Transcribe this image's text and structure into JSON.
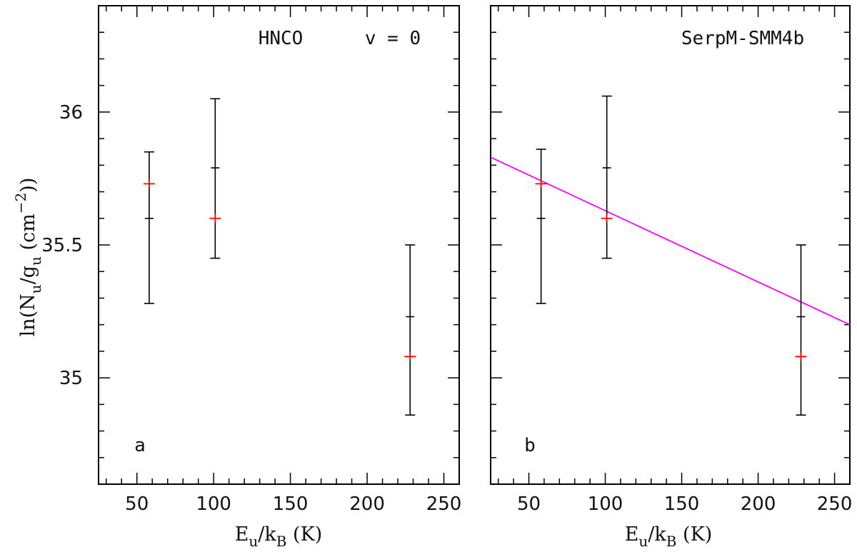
{
  "chart_data": [
    {
      "type": "scatter",
      "panel_label": "a",
      "annotations": [
        "HNCO",
        "v = 0"
      ],
      "xlim": [
        25,
        260
      ],
      "ylim": [
        34.6,
        36.4
      ],
      "x_major_ticks": [
        50,
        100,
        150,
        200,
        250
      ],
      "y_major_ticks": [
        35,
        35.5,
        36
      ],
      "x_tick_labels": [
        "50",
        "100",
        "150",
        "200",
        "250"
      ],
      "y_tick_labels": [
        "35",
        "35.5",
        "36"
      ],
      "series": [
        {
          "name": "observed",
          "color": "#ff0000",
          "points": [
            {
              "x": 58,
              "y": 35.73
            },
            {
              "x": 101,
              "y": 35.6
            },
            {
              "x": 228,
              "y": 35.08
            }
          ]
        },
        {
          "name": "error_bars",
          "color": "#000000",
          "bars": [
            {
              "x": 58,
              "low": 35.28,
              "high": 35.85,
              "mid": 35.6
            },
            {
              "x": 101,
              "low": 35.45,
              "high": 36.05,
              "mid": 35.79
            },
            {
              "x": 228,
              "low": 34.86,
              "high": 35.5,
              "mid": 35.23
            }
          ]
        }
      ]
    },
    {
      "type": "scatter",
      "panel_label": "b",
      "annotations": [
        "SerpM-SMM4b"
      ],
      "xlim": [
        25,
        260
      ],
      "ylim": [
        34.6,
        36.4
      ],
      "x_major_ticks": [
        50,
        100,
        150,
        200,
        250
      ],
      "y_major_ticks": [
        35,
        35.5,
        36
      ],
      "x_tick_labels": [
        "50",
        "100",
        "150",
        "200",
        "250"
      ],
      "series": [
        {
          "name": "observed",
          "color": "#ff0000",
          "points": [
            {
              "x": 58,
              "y": 35.73
            },
            {
              "x": 101,
              "y": 35.6
            },
            {
              "x": 228,
              "y": 35.08
            }
          ]
        },
        {
          "name": "error_bars",
          "color": "#000000",
          "bars": [
            {
              "x": 58,
              "low": 35.28,
              "high": 35.86,
              "mid": 35.6
            },
            {
              "x": 101,
              "low": 35.45,
              "high": 36.06,
              "mid": 35.79
            },
            {
              "x": 228,
              "low": 34.86,
              "high": 35.5,
              "mid": 35.23
            }
          ]
        },
        {
          "name": "fit",
          "color": "#ff00ff",
          "line": [
            {
              "x": 25,
              "y": 35.83
            },
            {
              "x": 260,
              "y": 35.2
            }
          ]
        }
      ]
    }
  ],
  "axes": {
    "xlabel": {
      "base": "E",
      "sub1": "u",
      "mid": "/k",
      "sub2": "B",
      "tail": " (K)"
    },
    "ylabel": {
      "pre": "ln(N",
      "sub1": "u",
      "mid": "/g",
      "sub2": "u",
      "open": " (cm",
      "sup": "−2",
      "close": "))"
    }
  }
}
